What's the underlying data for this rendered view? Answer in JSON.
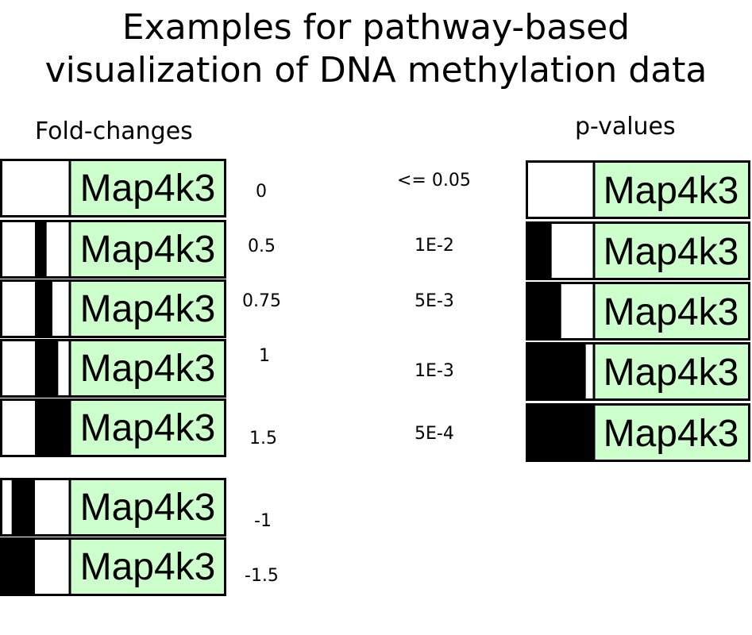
{
  "title_line1": "Examples for pathway-based",
  "title_line2": "visualization of DNA methylation data",
  "fold_changes": {
    "heading": "Fold-changes",
    "rows": [
      {
        "gene": "Map4k3",
        "value": "0",
        "fc": 0
      },
      {
        "gene": "Map4k3",
        "value": "0.5",
        "fc": 0.5
      },
      {
        "gene": "Map4k3",
        "value": "0.75",
        "fc": 0.75
      },
      {
        "gene": "Map4k3",
        "value": "1",
        "fc": 1
      },
      {
        "gene": "Map4k3",
        "value": "1.5",
        "fc": 1.5
      },
      {
        "gene": "Map4k3",
        "value": "-1",
        "fc": -1
      },
      {
        "gene": "Map4k3",
        "value": "-1.5",
        "fc": -1.5
      }
    ]
  },
  "p_values": {
    "heading": "p-values",
    "rows": [
      {
        "gene": "Map4k3",
        "value": "<= 0.05",
        "level": 0
      },
      {
        "gene": "Map4k3",
        "value": "1E-2",
        "level": 0.38
      },
      {
        "gene": "Map4k3",
        "value": "5E-3",
        "level": 0.52
      },
      {
        "gene": "Map4k3",
        "value": "1E-3",
        "level": 0.88
      },
      {
        "gene": "Map4k3",
        "value": "5E-4",
        "level": 1.0
      }
    ]
  },
  "colors": {
    "label_fill": "#ccffcc",
    "bar": "#000000",
    "border": "#000000",
    "background": "#ffffff"
  }
}
